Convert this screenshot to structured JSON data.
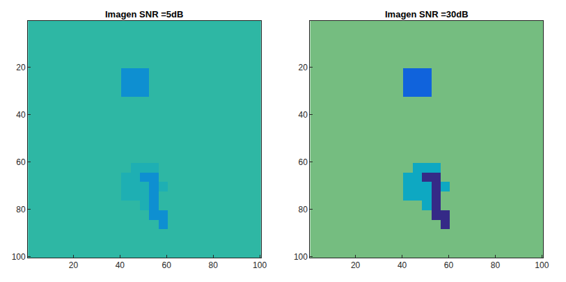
{
  "chart_data": [
    {
      "type": "heatmap",
      "title": "Imagen SNR =5dB",
      "x": [
        2.5,
        6.5,
        10.5,
        14.5,
        18.5,
        22.5,
        26.5,
        30.5,
        34.5,
        38.5,
        42.5,
        46.5,
        50.5,
        54.5,
        58.5,
        62.5,
        66.5,
        70.5,
        74.5,
        78.5,
        82.5,
        86.5,
        90.5,
        94.5,
        98.5
      ],
      "y": [
        2.5,
        6.5,
        10.5,
        14.5,
        18.5,
        22.5,
        26.5,
        30.5,
        34.5,
        38.5,
        42.5,
        46.5,
        50.5,
        54.5,
        58.5,
        62.5,
        66.5,
        70.5,
        74.5,
        78.5,
        82.5,
        86.5,
        90.5,
        94.5,
        98.5
      ],
      "xlim": [
        0.5,
        100.5
      ],
      "ylim": [
        100.5,
        0.5
      ],
      "xticks": [
        20,
        40,
        60,
        80,
        100
      ],
      "yticks": [
        20,
        40,
        60,
        80,
        100
      ],
      "zlim": [
        0,
        10
      ],
      "cells": [
        [
          5,
          5,
          5,
          5,
          5,
          5,
          5,
          5,
          5,
          5,
          5,
          5,
          5,
          5,
          5,
          5,
          5,
          5,
          5,
          5,
          5,
          5,
          5,
          5,
          5
        ],
        [
          5,
          5,
          5,
          5,
          5,
          5,
          5,
          5,
          5,
          5,
          5,
          5,
          5,
          5,
          5,
          5,
          5,
          5,
          5,
          5,
          5,
          5,
          5,
          5,
          5
        ],
        [
          5,
          5,
          5,
          5,
          5,
          5,
          5,
          5,
          5,
          5,
          5,
          5,
          5,
          5,
          5,
          5,
          5,
          5,
          5,
          5,
          5,
          5,
          5,
          5,
          5
        ],
        [
          5,
          5,
          5,
          5,
          5,
          5,
          5,
          5,
          5,
          5,
          5,
          5,
          5,
          5,
          5,
          5,
          5,
          5,
          5,
          5,
          5,
          5,
          5,
          5,
          5
        ],
        [
          5,
          5,
          5,
          5,
          5,
          5,
          5,
          5,
          5,
          5,
          5,
          5,
          5,
          5,
          5,
          5,
          5,
          5,
          5,
          5,
          5,
          5,
          5,
          5,
          5
        ],
        [
          5,
          5,
          5,
          5,
          5,
          5,
          5,
          5,
          5,
          5,
          3,
          3,
          3,
          5,
          5,
          5,
          5,
          5,
          5,
          5,
          5,
          5,
          5,
          5,
          5
        ],
        [
          5,
          5,
          5,
          5,
          5,
          5,
          5,
          5,
          5,
          5,
          3,
          3,
          3,
          5,
          5,
          5,
          5,
          5,
          5,
          5,
          5,
          5,
          5,
          5,
          5
        ],
        [
          5,
          5,
          5,
          5,
          5,
          5,
          5,
          5,
          5,
          5,
          3,
          3,
          3,
          5,
          5,
          5,
          5,
          5,
          5,
          5,
          5,
          5,
          5,
          5,
          5
        ],
        [
          5,
          5,
          5,
          5,
          5,
          5,
          5,
          5,
          5,
          5,
          5,
          5,
          5,
          5,
          5,
          5,
          5,
          5,
          5,
          5,
          5,
          5,
          5,
          5,
          5
        ],
        [
          5,
          5,
          5,
          5,
          5,
          5,
          5,
          5,
          5,
          5,
          5,
          5,
          5,
          5,
          5,
          5,
          5,
          5,
          5,
          5,
          5,
          5,
          5,
          5,
          5
        ],
        [
          5,
          5,
          5,
          5,
          5,
          5,
          5,
          5,
          5,
          5,
          5,
          5,
          5,
          5,
          5,
          5,
          5,
          5,
          5,
          5,
          5,
          5,
          5,
          5,
          5
        ],
        [
          5,
          5,
          5,
          5,
          5,
          5,
          5,
          5,
          5,
          5,
          5,
          5,
          5,
          5,
          5,
          5,
          5,
          5,
          5,
          5,
          5,
          5,
          5,
          5,
          5
        ],
        [
          5,
          5,
          5,
          5,
          5,
          5,
          5,
          5,
          5,
          5,
          5,
          5,
          5,
          5,
          5,
          5,
          5,
          5,
          5,
          5,
          5,
          5,
          5,
          5,
          5
        ],
        [
          5,
          5,
          5,
          5,
          5,
          5,
          5,
          5,
          5,
          5,
          5,
          5,
          5,
          5,
          5,
          5,
          5,
          5,
          5,
          5,
          5,
          5,
          5,
          5,
          5
        ],
        [
          5,
          5,
          5,
          5,
          5,
          5,
          5,
          5,
          5,
          5,
          5,
          5,
          5,
          5,
          5,
          5,
          5,
          5,
          5,
          5,
          5,
          5,
          5,
          5,
          5
        ],
        [
          5,
          5,
          5,
          5,
          5,
          5,
          5,
          5,
          5,
          5,
          5,
          4.5,
          4.5,
          4.5,
          5,
          5,
          5,
          5,
          5,
          5,
          5,
          5,
          5,
          5,
          5
        ],
        [
          5,
          5,
          5,
          5,
          5,
          5,
          5,
          5,
          5,
          5,
          4.5,
          4.5,
          3,
          3,
          5,
          5,
          5,
          5,
          5,
          5,
          5,
          5,
          5,
          5,
          5
        ],
        [
          5,
          5,
          5,
          5,
          5,
          5,
          5,
          5,
          5,
          5,
          4.5,
          4.5,
          4.5,
          3,
          4.5,
          5,
          5,
          5,
          5,
          5,
          5,
          5,
          5,
          5,
          5
        ],
        [
          5,
          5,
          5,
          5,
          5,
          5,
          5,
          5,
          5,
          5,
          4.5,
          4.5,
          4.5,
          3,
          5,
          5,
          5,
          5,
          5,
          5,
          5,
          5,
          5,
          5,
          5
        ],
        [
          5,
          5,
          5,
          5,
          5,
          5,
          5,
          5,
          5,
          5,
          5,
          5,
          4.5,
          3,
          5,
          5,
          5,
          5,
          5,
          5,
          5,
          5,
          5,
          5,
          5
        ],
        [
          5,
          5,
          5,
          5,
          5,
          5,
          5,
          5,
          5,
          5,
          5,
          5,
          5,
          3,
          3,
          5,
          5,
          5,
          5,
          5,
          5,
          5,
          5,
          5,
          5
        ],
        [
          5,
          5,
          5,
          5,
          5,
          5,
          5,
          5,
          5,
          5,
          5,
          5,
          5,
          5,
          3,
          5,
          5,
          5,
          5,
          5,
          5,
          5,
          5,
          5,
          5
        ],
        [
          5,
          5,
          5,
          5,
          5,
          5,
          5,
          5,
          5,
          5,
          5,
          5,
          5,
          5,
          5,
          5,
          5,
          5,
          5,
          5,
          5,
          5,
          5,
          5,
          5
        ],
        [
          5,
          5,
          5,
          5,
          5,
          5,
          5,
          5,
          5,
          5,
          5,
          5,
          5,
          5,
          5,
          5,
          5,
          5,
          5,
          5,
          5,
          5,
          5,
          5,
          5
        ],
        [
          5,
          5,
          5,
          5,
          5,
          5,
          5,
          5,
          5,
          5,
          5,
          5,
          5,
          5,
          5,
          5,
          5,
          5,
          5,
          5,
          5,
          5,
          5,
          5,
          5
        ]
      ]
    },
    {
      "type": "heatmap",
      "title": "Imagen SNR =30dB",
      "x": [
        2.5,
        6.5,
        10.5,
        14.5,
        18.5,
        22.5,
        26.5,
        30.5,
        34.5,
        38.5,
        42.5,
        46.5,
        50.5,
        54.5,
        58.5,
        62.5,
        66.5,
        70.5,
        74.5,
        78.5,
        82.5,
        86.5,
        90.5,
        94.5,
        98.5
      ],
      "y": [
        2.5,
        6.5,
        10.5,
        14.5,
        18.5,
        22.5,
        26.5,
        30.5,
        34.5,
        38.5,
        42.5,
        46.5,
        50.5,
        54.5,
        58.5,
        62.5,
        66.5,
        70.5,
        74.5,
        78.5,
        82.5,
        86.5,
        90.5,
        94.5,
        98.5
      ],
      "xlim": [
        0.5,
        100.5
      ],
      "ylim": [
        100.5,
        0.5
      ],
      "xticks": [
        20,
        40,
        60,
        80,
        100
      ],
      "yticks": [
        20,
        40,
        60,
        80,
        100
      ],
      "zlim": [
        0,
        10
      ],
      "cells": [
        [
          6,
          6,
          6,
          6,
          6,
          6,
          6,
          6,
          6,
          6,
          6,
          6,
          6,
          6,
          6,
          6,
          6,
          6,
          6,
          6,
          6,
          6,
          6,
          6,
          6
        ],
        [
          6,
          6,
          6,
          6,
          6,
          6,
          6,
          6,
          6,
          6,
          6,
          6,
          6,
          6,
          6,
          6,
          6,
          6,
          6,
          6,
          6,
          6,
          6,
          6,
          6
        ],
        [
          6,
          6,
          6,
          6,
          6,
          6,
          6,
          6,
          6,
          6,
          6,
          6,
          6,
          6,
          6,
          6,
          6,
          6,
          6,
          6,
          6,
          6,
          6,
          6,
          6
        ],
        [
          6,
          6,
          6,
          6,
          6,
          6,
          6,
          6,
          6,
          6,
          6,
          6,
          6,
          6,
          6,
          6,
          6,
          6,
          6,
          6,
          6,
          6,
          6,
          6,
          6
        ],
        [
          6,
          6,
          6,
          6,
          6,
          6,
          6,
          6,
          6,
          6,
          6,
          6,
          6,
          6,
          6,
          6,
          6,
          6,
          6,
          6,
          6,
          6,
          6,
          6,
          6
        ],
        [
          6,
          6,
          6,
          6,
          6,
          6,
          6,
          6,
          6,
          6,
          1.5,
          1.5,
          1.5,
          6,
          6,
          6,
          6,
          6,
          6,
          6,
          6,
          6,
          6,
          6,
          6
        ],
        [
          6,
          6,
          6,
          6,
          6,
          6,
          6,
          6,
          6,
          6,
          1.5,
          1.5,
          1.5,
          6,
          6,
          6,
          6,
          6,
          6,
          6,
          6,
          6,
          6,
          6,
          6
        ],
        [
          6,
          6,
          6,
          6,
          6,
          6,
          6,
          6,
          6,
          6,
          1.5,
          1.5,
          1.5,
          6,
          6,
          6,
          6,
          6,
          6,
          6,
          6,
          6,
          6,
          6,
          6
        ],
        [
          6,
          6,
          6,
          6,
          6,
          6,
          6,
          6,
          6,
          6,
          6,
          6,
          6,
          6,
          6,
          6,
          6,
          6,
          6,
          6,
          6,
          6,
          6,
          6,
          6
        ],
        [
          6,
          6,
          6,
          6,
          6,
          6,
          6,
          6,
          6,
          6,
          6,
          6,
          6,
          6,
          6,
          6,
          6,
          6,
          6,
          6,
          6,
          6,
          6,
          6,
          6
        ],
        [
          6,
          6,
          6,
          6,
          6,
          6,
          6,
          6,
          6,
          6,
          6,
          6,
          6,
          6,
          6,
          6,
          6,
          6,
          6,
          6,
          6,
          6,
          6,
          6,
          6
        ],
        [
          6,
          6,
          6,
          6,
          6,
          6,
          6,
          6,
          6,
          6,
          6,
          6,
          6,
          6,
          6,
          6,
          6,
          6,
          6,
          6,
          6,
          6,
          6,
          6,
          6
        ],
        [
          6,
          6,
          6,
          6,
          6,
          6,
          6,
          6,
          6,
          6,
          6,
          6,
          6,
          6,
          6,
          6,
          6,
          6,
          6,
          6,
          6,
          6,
          6,
          6,
          6
        ],
        [
          6,
          6,
          6,
          6,
          6,
          6,
          6,
          6,
          6,
          6,
          6,
          6,
          6,
          6,
          6,
          6,
          6,
          6,
          6,
          6,
          6,
          6,
          6,
          6,
          6
        ],
        [
          6,
          6,
          6,
          6,
          6,
          6,
          6,
          6,
          6,
          6,
          6,
          6,
          6,
          6,
          6,
          6,
          6,
          6,
          6,
          6,
          6,
          6,
          6,
          6,
          6
        ],
        [
          6,
          6,
          6,
          6,
          6,
          6,
          6,
          6,
          6,
          6,
          6,
          4,
          4,
          4,
          6,
          6,
          6,
          6,
          6,
          6,
          6,
          6,
          6,
          6,
          6
        ],
        [
          6,
          6,
          6,
          6,
          6,
          6,
          6,
          6,
          6,
          6,
          4,
          4,
          0,
          0,
          6,
          6,
          6,
          6,
          6,
          6,
          6,
          6,
          6,
          6,
          6
        ],
        [
          6,
          6,
          6,
          6,
          6,
          6,
          6,
          6,
          6,
          6,
          4,
          4,
          4,
          0,
          4,
          6,
          6,
          6,
          6,
          6,
          6,
          6,
          6,
          6,
          6
        ],
        [
          6,
          6,
          6,
          6,
          6,
          6,
          6,
          6,
          6,
          6,
          4,
          4,
          4,
          0,
          6,
          6,
          6,
          6,
          6,
          6,
          6,
          6,
          6,
          6,
          6
        ],
        [
          6,
          6,
          6,
          6,
          6,
          6,
          6,
          6,
          6,
          6,
          6,
          6,
          4,
          0,
          6,
          6,
          6,
          6,
          6,
          6,
          6,
          6,
          6,
          6,
          6
        ],
        [
          6,
          6,
          6,
          6,
          6,
          6,
          6,
          6,
          6,
          6,
          6,
          6,
          6,
          0,
          0,
          6,
          6,
          6,
          6,
          6,
          6,
          6,
          6,
          6,
          6
        ],
        [
          6,
          6,
          6,
          6,
          6,
          6,
          6,
          6,
          6,
          6,
          6,
          6,
          6,
          6,
          0,
          6,
          6,
          6,
          6,
          6,
          6,
          6,
          6,
          6,
          6
        ],
        [
          6,
          6,
          6,
          6,
          6,
          6,
          6,
          6,
          6,
          6,
          6,
          6,
          6,
          6,
          6,
          6,
          6,
          6,
          6,
          6,
          6,
          6,
          6,
          6,
          6
        ],
        [
          6,
          6,
          6,
          6,
          6,
          6,
          6,
          6,
          6,
          6,
          6,
          6,
          6,
          6,
          6,
          6,
          6,
          6,
          6,
          6,
          6,
          6,
          6,
          6,
          6
        ],
        [
          6,
          6,
          6,
          6,
          6,
          6,
          6,
          6,
          6,
          6,
          6,
          6,
          6,
          6,
          6,
          6,
          6,
          6,
          6,
          6,
          6,
          6,
          6,
          6,
          6
        ]
      ]
    }
  ]
}
